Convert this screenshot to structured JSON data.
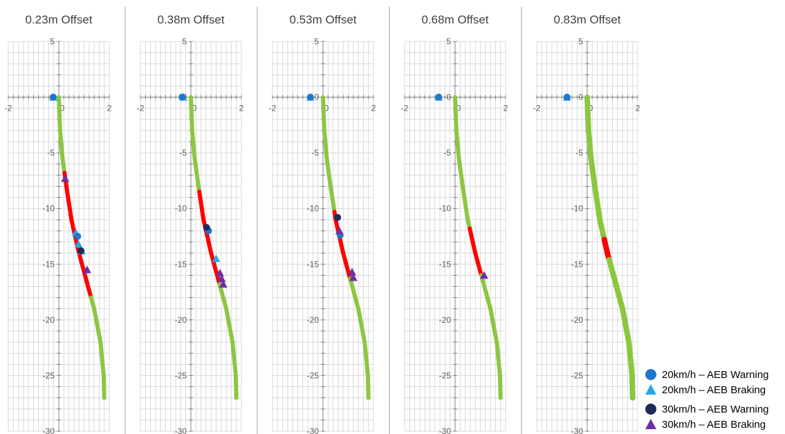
{
  "chart_data": [
    {
      "type": "scatter",
      "title": "0.23m Offset",
      "xlim": [
        -2,
        2
      ],
      "ylim": [
        -30,
        5
      ],
      "x_ticks": [
        "-2",
        "0",
        "2"
      ],
      "y_ticks": [
        "5",
        "0",
        "-5",
        "-10",
        "-15",
        "-20",
        "-25",
        "-30"
      ],
      "path": [
        [
          0,
          0
        ],
        [
          0.05,
          -3
        ],
        [
          0.15,
          -5.5
        ],
        [
          0.3,
          -8
        ],
        [
          0.5,
          -11
        ],
        [
          0.8,
          -14
        ],
        [
          1.1,
          -16.5
        ],
        [
          1.4,
          -19
        ],
        [
          1.65,
          -22
        ],
        [
          1.78,
          -25
        ],
        [
          1.8,
          -27
        ]
      ],
      "red_range": [
        -6.8,
        -18
      ],
      "points": {
        "aeb20_warning": [
          [
            -0.22,
            0
          ],
          [
            0.75,
            -12.5
          ]
        ],
        "aeb20_braking": [
          [
            -0.22,
            0
          ],
          [
            0.68,
            -12.2
          ],
          [
            0.78,
            -13.2
          ],
          [
            0.9,
            -13.8
          ]
        ],
        "aeb30_warning": [
          [
            0.88,
            -13.8
          ]
        ],
        "aeb30_braking": [
          [
            0.25,
            -7.3
          ],
          [
            1.12,
            -15.5
          ]
        ]
      }
    },
    {
      "type": "scatter",
      "title": "0.38m Offset",
      "xlim": [
        -2,
        2
      ],
      "ylim": [
        -30,
        5
      ],
      "x_ticks": [
        "-2",
        "0",
        "2"
      ],
      "y_ticks": [
        "5",
        "0",
        "-5",
        "-10",
        "-15",
        "-20",
        "-25",
        "-30"
      ],
      "path": [
        [
          0,
          0
        ],
        [
          0.05,
          -3
        ],
        [
          0.15,
          -5.5
        ],
        [
          0.3,
          -8
        ],
        [
          0.5,
          -11
        ],
        [
          0.8,
          -14
        ],
        [
          1.1,
          -16.5
        ],
        [
          1.4,
          -19
        ],
        [
          1.65,
          -22
        ],
        [
          1.78,
          -25
        ],
        [
          1.8,
          -27
        ]
      ],
      "red_range": [
        -8.5,
        -16.8
      ],
      "points": {
        "aeb20_warning": [
          [
            -0.35,
            0
          ],
          [
            0.7,
            -12.0
          ]
        ],
        "aeb20_braking": [
          [
            -0.3,
            0
          ],
          [
            1.0,
            -14.5
          ]
        ],
        "aeb30_warning": [
          [
            0.62,
            -11.7
          ]
        ],
        "aeb30_braking": [
          [
            1.15,
            -15.8
          ],
          [
            1.22,
            -16.3
          ],
          [
            1.28,
            -16.8
          ]
        ]
      }
    },
    {
      "type": "scatter",
      "title": "0.53m Offset",
      "xlim": [
        -2,
        2
      ],
      "ylim": [
        -30,
        5
      ],
      "x_ticks": [
        "-2",
        "0",
        "2"
      ],
      "y_ticks": [
        "5",
        "0",
        "-5",
        "-10",
        "-15",
        "-20",
        "-25",
        "-30"
      ],
      "path": [
        [
          0,
          0
        ],
        [
          0.05,
          -3
        ],
        [
          0.15,
          -5.5
        ],
        [
          0.3,
          -8
        ],
        [
          0.5,
          -11
        ],
        [
          0.8,
          -14
        ],
        [
          1.1,
          -16.5
        ],
        [
          1.4,
          -19
        ],
        [
          1.65,
          -22
        ],
        [
          1.78,
          -25
        ],
        [
          1.8,
          -27
        ]
      ],
      "red_range": [
        -10.3,
        -16.3
      ],
      "points": {
        "aeb20_warning": [
          [
            -0.5,
            0
          ],
          [
            0.68,
            -12.4
          ]
        ],
        "aeb20_braking": [
          [
            -0.5,
            0
          ]
        ],
        "aeb30_warning": [
          [
            0.58,
            -10.8
          ]
        ],
        "aeb30_braking": [
          [
            0.65,
            -12.0
          ],
          [
            1.15,
            -15.7
          ],
          [
            1.2,
            -16.2
          ]
        ]
      }
    },
    {
      "type": "scatter",
      "title": "0.68m Offset",
      "xlim": [
        -2,
        2
      ],
      "ylim": [
        -30,
        5
      ],
      "x_ticks": [
        "-2",
        "0",
        "2"
      ],
      "y_ticks": [
        "5",
        "0",
        "-5",
        "-10",
        "-15",
        "-20",
        "-25",
        "-30"
      ],
      "path": [
        [
          0,
          0
        ],
        [
          0.05,
          -3
        ],
        [
          0.15,
          -5.5
        ],
        [
          0.3,
          -8
        ],
        [
          0.5,
          -11
        ],
        [
          0.8,
          -14
        ],
        [
          1.1,
          -16.5
        ],
        [
          1.4,
          -19
        ],
        [
          1.65,
          -22
        ],
        [
          1.78,
          -25
        ],
        [
          1.8,
          -27
        ]
      ],
      "red_range": [
        -11.8,
        -16.0
      ],
      "points": {
        "aeb20_warning": [
          [
            -0.65,
            0
          ]
        ],
        "aeb20_braking": [
          [
            -0.65,
            0
          ]
        ],
        "aeb30_warning": [],
        "aeb30_braking": [
          [
            1.15,
            -16.0
          ]
        ]
      }
    },
    {
      "type": "scatter",
      "title": "0.83m Offset",
      "xlim": [
        -2,
        2
      ],
      "ylim": [
        -30,
        5
      ],
      "x_ticks": [
        "-2",
        "0",
        "2"
      ],
      "y_ticks": [
        "5",
        "0",
        "-5",
        "-10",
        "-15",
        "-20",
        "-25",
        "-30"
      ],
      "path": [
        [
          0,
          0
        ],
        [
          0.05,
          -3
        ],
        [
          0.15,
          -5.5
        ],
        [
          0.3,
          -8
        ],
        [
          0.5,
          -11
        ],
        [
          0.8,
          -14
        ],
        [
          1.1,
          -16.5
        ],
        [
          1.4,
          -19
        ],
        [
          1.65,
          -22
        ],
        [
          1.78,
          -25
        ],
        [
          1.8,
          -27
        ]
      ],
      "red_range": [
        -12.8,
        -14.6
      ],
      "points": {
        "aeb20_warning": [
          [
            -0.8,
            0
          ]
        ],
        "aeb20_braking": [
          [
            -0.8,
            0
          ]
        ],
        "aeb30_warning": [],
        "aeb30_braking": []
      }
    }
  ],
  "legend": [
    {
      "key": "aeb20_warning",
      "label": "20km/h – AEB Warning",
      "marker": "circle",
      "color": "#1f77c9"
    },
    {
      "key": "aeb20_braking",
      "label": "20km/h – AEB Braking",
      "marker": "triangle",
      "color": "#27aae1"
    },
    {
      "key": "aeb30_warning",
      "label": "30km/h – AEB Warning",
      "marker": "circle",
      "color": "#1f2a5a"
    },
    {
      "key": "aeb30_braking",
      "label": "30km/h – AEB Braking",
      "marker": "triangle",
      "color": "#7030a0"
    }
  ],
  "colors": {
    "path_green": "#8cc63f",
    "path_red": "#ff0000",
    "grid": "#d9d9d9",
    "axis": "#808080",
    "separator": "#bfbfbf"
  }
}
